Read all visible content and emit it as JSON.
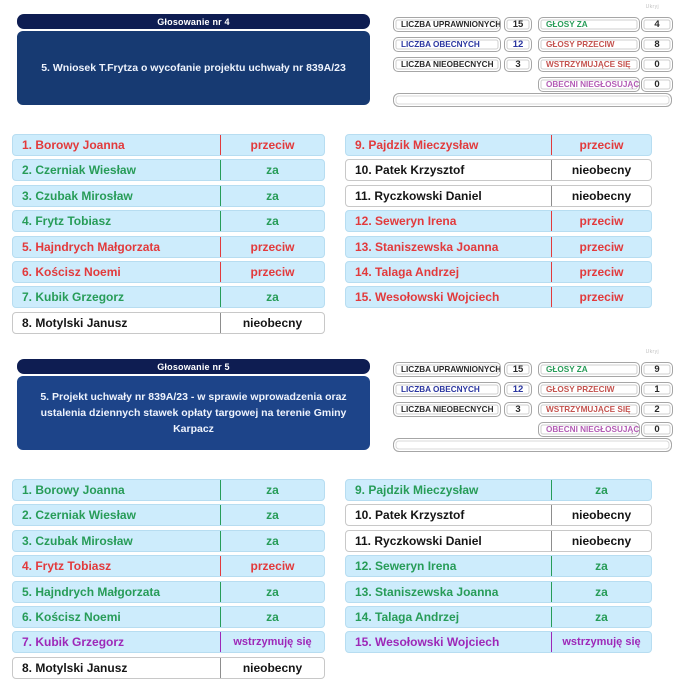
{
  "colors": {
    "header_bg": "#0e1d52",
    "desc_bg_1": "#173a72",
    "desc_bg_2": "#1d4489",
    "row_bg": "#cdecfc",
    "green": "#279c58",
    "red": "#e23a3c",
    "red_muted": "#c4534f",
    "purple": "#9d28b8",
    "purple_muted": "#b35cb5",
    "navy": "#2b36a0",
    "box_border": "#a6a6a6"
  },
  "panels": [
    {
      "title": "Głosowanie nr 4",
      "description": "5. Wniosek T.Frytza o wycofanie projektu uchwały nr 839A/23",
      "corner_note": "Ukryj",
      "stats_left": [
        {
          "label": "LICZBA UPRAWNIONYCH",
          "value": "15",
          "label_ink": "black",
          "value_ink": "black"
        },
        {
          "label": "LICZBA OBECNYCH",
          "value": "12",
          "label_ink": "navy",
          "value_ink": "navy"
        },
        {
          "label": "LICZBA NIEOBECNYCH",
          "value": "3",
          "label_ink": "black",
          "value_ink": "black"
        }
      ],
      "stats_right": [
        {
          "label": "GŁOSY ZA",
          "value": "4",
          "label_ink": "green",
          "value_ink": "black"
        },
        {
          "label": "GŁOSY PRZECIW",
          "value": "8",
          "label_ink": "redm",
          "value_ink": "black"
        },
        {
          "label": "WSTRZYMUJĄCE SIĘ",
          "value": "0",
          "label_ink": "redm",
          "value_ink": "black"
        },
        {
          "label": "OBECNI NIEGŁOSUJĄCY",
          "value": "0",
          "label_ink": "purplem",
          "value_ink": "black"
        }
      ],
      "voters_left": [
        {
          "name": "1. Borowy Joanna",
          "vote": "przeciw",
          "type": "przeciw"
        },
        {
          "name": "2. Czerniak Wiesław",
          "vote": "za",
          "type": "za"
        },
        {
          "name": "3. Czubak Mirosław",
          "vote": "za",
          "type": "za"
        },
        {
          "name": "4. Frytz Tobiasz",
          "vote": "za",
          "type": "za"
        },
        {
          "name": "5. Hajndrych Małgorzata",
          "vote": "przeciw",
          "type": "przeciw"
        },
        {
          "name": "6. Kościsz Noemi",
          "vote": "przeciw",
          "type": "przeciw"
        },
        {
          "name": "7. Kubik Grzegorz",
          "vote": "za",
          "type": "za"
        },
        {
          "name": "8. Motylski Janusz",
          "vote": "nieobecny",
          "type": "nieobecny"
        }
      ],
      "voters_right": [
        {
          "name": "9. Pajdzik Mieczysław",
          "vote": "przeciw",
          "type": "przeciw"
        },
        {
          "name": "10. Patek Krzysztof",
          "vote": "nieobecny",
          "type": "nieobecny"
        },
        {
          "name": "11. Ryczkowski Daniel",
          "vote": "nieobecny",
          "type": "nieobecny"
        },
        {
          "name": "12. Seweryn Irena",
          "vote": "przeciw",
          "type": "przeciw"
        },
        {
          "name": "13. Staniszewska Joanna",
          "vote": "przeciw",
          "type": "przeciw"
        },
        {
          "name": "14. Talaga Andrzej",
          "vote": "przeciw",
          "type": "przeciw"
        },
        {
          "name": "15. Wesołowski Wojciech",
          "vote": "przeciw",
          "type": "przeciw"
        }
      ]
    },
    {
      "title": "Głosowanie nr 5",
      "description": "5. Projekt uchwały nr 839A/23 - w sprawie wprowadzenia oraz ustalenia dziennych stawek opłaty targowej na terenie Gminy Karpacz",
      "corner_note": "Ukryj",
      "stats_left": [
        {
          "label": "LICZBA UPRAWNIONYCH",
          "value": "15",
          "label_ink": "black",
          "value_ink": "black"
        },
        {
          "label": "LICZBA OBECNYCH",
          "value": "12",
          "label_ink": "navy",
          "value_ink": "navy"
        },
        {
          "label": "LICZBA NIEOBECNYCH",
          "value": "3",
          "label_ink": "black",
          "value_ink": "black"
        }
      ],
      "stats_right": [
        {
          "label": "GŁOSY ZA",
          "value": "9",
          "label_ink": "green",
          "value_ink": "black"
        },
        {
          "label": "GŁOSY PRZECIW",
          "value": "1",
          "label_ink": "redm",
          "value_ink": "black"
        },
        {
          "label": "WSTRZYMUJĄCE SIĘ",
          "value": "2",
          "label_ink": "redm",
          "value_ink": "black"
        },
        {
          "label": "OBECNI NIEGŁOSUJĄCY",
          "value": "0",
          "label_ink": "purplem",
          "value_ink": "black"
        }
      ],
      "voters_left": [
        {
          "name": "1. Borowy Joanna",
          "vote": "za",
          "type": "za"
        },
        {
          "name": "2. Czerniak Wiesław",
          "vote": "za",
          "type": "za"
        },
        {
          "name": "3. Czubak Mirosław",
          "vote": "za",
          "type": "za"
        },
        {
          "name": "4. Frytz Tobiasz",
          "vote": "przeciw",
          "type": "przeciw"
        },
        {
          "name": "5. Hajndrych Małgorzata",
          "vote": "za",
          "type": "za"
        },
        {
          "name": "6. Kościsz Noemi",
          "vote": "za",
          "type": "za"
        },
        {
          "name": "7. Kubik Grzegorz",
          "vote": "wstrzymuję się",
          "type": "wstrzymuje"
        },
        {
          "name": "8. Motylski Janusz",
          "vote": "nieobecny",
          "type": "nieobecny"
        }
      ],
      "voters_right": [
        {
          "name": "9. Pajdzik Mieczysław",
          "vote": "za",
          "type": "za"
        },
        {
          "name": "10. Patek Krzysztof",
          "vote": "nieobecny",
          "type": "nieobecny"
        },
        {
          "name": "11. Ryczkowski Daniel",
          "vote": "nieobecny",
          "type": "nieobecny"
        },
        {
          "name": "12. Seweryn Irena",
          "vote": "za",
          "type": "za"
        },
        {
          "name": "13. Staniszewska Joanna",
          "vote": "za",
          "type": "za"
        },
        {
          "name": "14. Talaga Andrzej",
          "vote": "za",
          "type": "za"
        },
        {
          "name": "15. Wesołowski Wojciech",
          "vote": "wstrzymuję się",
          "type": "wstrzymuje"
        }
      ]
    }
  ]
}
